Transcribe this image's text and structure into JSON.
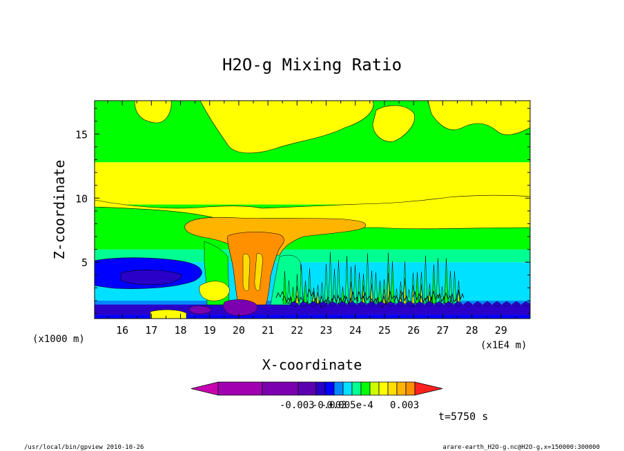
{
  "chart_data": {
    "type": "heatmap",
    "title": "H2O-g Mixing Ratio",
    "xlabel": "X-coordinate",
    "ylabel": "Z-coordinate",
    "x_unit_left": "(x1000 m)",
    "x_unit_right": "(x1E4 m)",
    "x_ticks": [
      "16",
      "17",
      "18",
      "19",
      "20",
      "21",
      "22",
      "23",
      "24",
      "25",
      "26",
      "27",
      "28",
      "29"
    ],
    "x_tick_values": [
      16,
      17,
      18,
      19,
      20,
      21,
      22,
      23,
      24,
      25,
      26,
      27,
      28,
      29
    ],
    "xlim": [
      15.05,
      30.0
    ],
    "y_ticks": [
      "5",
      "10",
      "15"
    ],
    "y_tick_values": [
      5,
      10,
      15
    ],
    "ylim": [
      0.6,
      17.6
    ],
    "colorbar_labels": [
      "-0.003",
      "-0.003",
      "-0.005e-4",
      "0.003"
    ],
    "colorbar_colors": [
      "#c700b0",
      "#a000b0",
      "#7a00b0",
      "#5a00b0",
      "#2a00c8",
      "#0000ff",
      "#0088ff",
      "#00e0ff",
      "#00ff90",
      "#00ff00",
      "#ccff00",
      "#ffff00",
      "#ffdd00",
      "#ffb400",
      "#ff9000",
      "#ff2020"
    ],
    "time_label": "t=5750 s",
    "footer_left": "/usr/local/bin/gpview  2010-10-26",
    "footer_right": "arare-earth_H2O-g.nc@H2O-g,x=150000:300000",
    "bands": [
      {
        "z": [
          0.6,
          0.9
        ],
        "color": "#0000ff"
      },
      {
        "z": [
          0.9,
          1.7
        ],
        "color": "#2a00c8"
      },
      {
        "z": [
          1.7,
          2.0
        ],
        "color": "#0088ff"
      },
      {
        "z": [
          2.0,
          5.0
        ],
        "color": "#00e0ff"
      },
      {
        "z": [
          5.0,
          6.0
        ],
        "color": "#00ff90"
      },
      {
        "z": [
          6.0,
          9.5
        ],
        "color": "#00ff00"
      },
      {
        "z": [
          9.5,
          12.8
        ],
        "color": "#ffff00"
      },
      {
        "z": [
          12.8,
          17.6
        ],
        "color": "#00ff00"
      }
    ]
  }
}
